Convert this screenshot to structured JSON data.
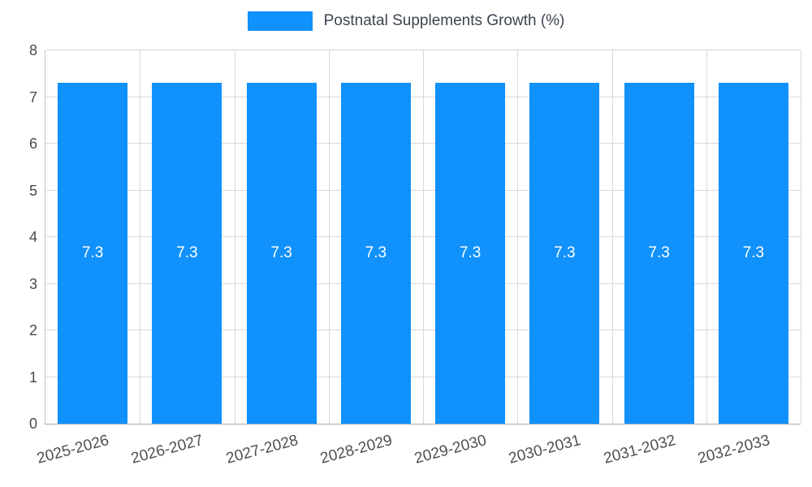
{
  "legend": {
    "label": "Postnatal Supplements Growth (%)"
  },
  "chart_data": {
    "type": "bar",
    "title": "Postnatal Supplements Growth (%)",
    "categories": [
      "2025-2026",
      "2026-2027",
      "2027-2028",
      "2028-2029",
      "2029-2030",
      "2030-2031",
      "2031-2032",
      "2032-2033"
    ],
    "values": [
      7.3,
      7.3,
      7.3,
      7.3,
      7.3,
      7.3,
      7.3,
      7.3
    ],
    "xlabel": "",
    "ylabel": "",
    "ylim": [
      0,
      8
    ],
    "yticks": [
      0,
      1,
      2,
      3,
      4,
      5,
      6,
      7,
      8
    ],
    "grid": true,
    "legend_position": "top-center",
    "bar_color": "#1191fb",
    "value_label_color": "#ffffff"
  }
}
